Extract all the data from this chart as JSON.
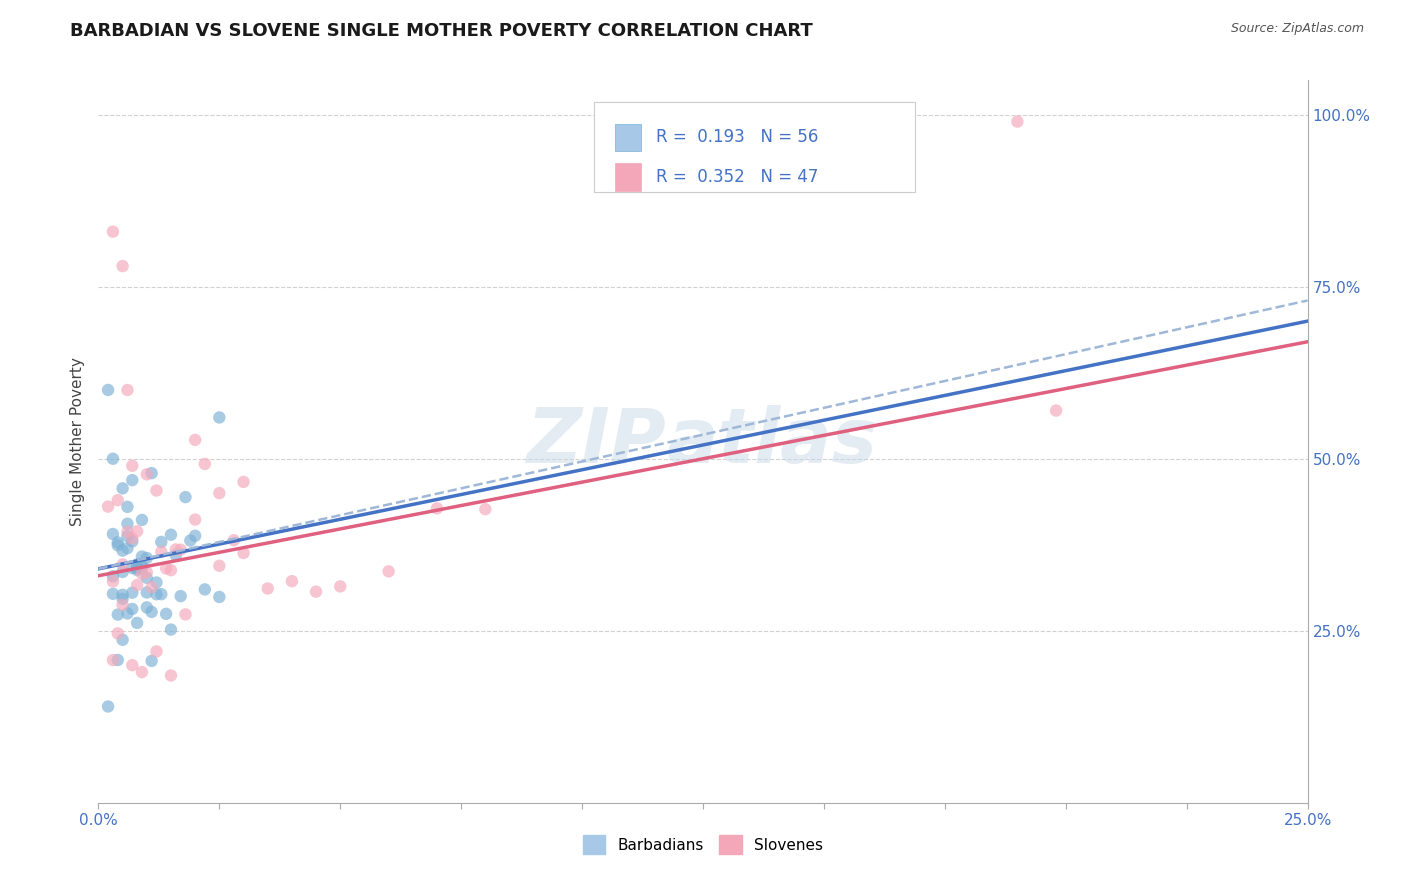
{
  "title": "BARBADIAN VS SLOVENE SINGLE MOTHER POVERTY CORRELATION CHART",
  "source": "Source: ZipAtlas.com",
  "ylabel": "Single Mother Poverty",
  "watermark_zip": "ZIP",
  "watermark_atlas": "atlas",
  "background_color": "#ffffff",
  "barbadians_color": "#7ab0d4",
  "slovenes_color": "#f4a7b9",
  "trendline_blue_solid_color": "#4472c4",
  "trendline_pink_solid_color": "#e06080",
  "trendline_blue_dashed_color": "#a0b8d8",
  "legend_barb_color": "#a8c8e8",
  "legend_slov_color": "#f4a7b9",
  "R_barb": 0.193,
  "N_barb": 56,
  "R_slov": 0.352,
  "N_slov": 47,
  "xmin": 0.0,
  "xmax": 0.25,
  "ymin": 0.0,
  "ymax": 1.05,
  "title_fontsize": 13,
  "tick_fontsize": 11,
  "label_fontsize": 11,
  "legend_fontsize": 12,
  "source_fontsize": 9,
  "blue_line_y0": 0.34,
  "blue_line_y1": 0.7,
  "pink_line_y0": 0.33,
  "pink_line_y1": 0.67,
  "dashed_line_y0": 0.34,
  "dashed_line_y1": 0.73
}
